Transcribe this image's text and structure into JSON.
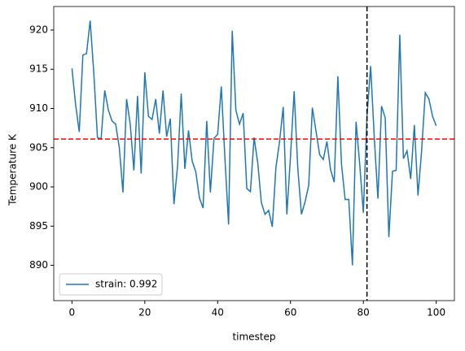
{
  "chart_data": {
    "type": "line",
    "xlabel": "timestep",
    "ylabel": "Temperature K",
    "x": [
      0,
      1,
      2,
      3,
      4,
      5,
      6,
      7,
      8,
      9,
      10,
      11,
      12,
      13,
      14,
      15,
      16,
      17,
      18,
      19,
      20,
      21,
      22,
      23,
      24,
      25,
      26,
      27,
      28,
      29,
      30,
      31,
      32,
      33,
      34,
      35,
      36,
      37,
      38,
      39,
      40,
      41,
      42,
      43,
      44,
      45,
      46,
      47,
      48,
      49,
      50,
      51,
      52,
      53,
      54,
      55,
      56,
      57,
      58,
      59,
      60,
      61,
      62,
      63,
      64,
      65,
      66,
      67,
      68,
      69,
      70,
      71,
      72,
      73,
      74,
      75,
      76,
      77,
      78,
      79,
      80,
      81,
      82,
      83,
      84,
      85,
      86,
      87,
      88,
      89,
      90,
      91,
      92,
      93,
      94,
      95,
      96,
      97,
      98,
      99,
      100
    ],
    "series": [
      {
        "name": "strain: 0.992",
        "color": "#1f77b4",
        "values": [
          915.1,
          910.5,
          907.0,
          916.8,
          917.0,
          921.2,
          914.5,
          906.3,
          906.1,
          912.3,
          909.8,
          908.4,
          908.0,
          905.0,
          899.3,
          911.2,
          908.0,
          902.1,
          911.6,
          901.7,
          914.6,
          909.0,
          908.6,
          911.2,
          906.8,
          912.3,
          906.4,
          908.7,
          897.8,
          902.7,
          911.9,
          902.3,
          907.2,
          903.3,
          901.9,
          898.6,
          897.3,
          908.4,
          899.3,
          906.2,
          906.7,
          912.8,
          903.6,
          895.2,
          919.9,
          909.8,
          908.0,
          909.4,
          899.8,
          899.4,
          906.3,
          903.1,
          898.0,
          896.5,
          897.0,
          894.9,
          902.5,
          905.8,
          910.2,
          896.5,
          903.9,
          912.2,
          902.4,
          896.5,
          898.1,
          900.2,
          910.1,
          907.1,
          904.1,
          903.5,
          905.8,
          902.2,
          900.6,
          914.1,
          902.9,
          898.4,
          898.4,
          890.0,
          908.3,
          902.9,
          896.7,
          909.0,
          915.4,
          906.3,
          898.5,
          910.3,
          908.8,
          893.6,
          902.0,
          902.1,
          919.4,
          903.6,
          904.6,
          901.0,
          907.9,
          898.9,
          904.6,
          912.0,
          911.2,
          909.0,
          907.8
        ]
      }
    ],
    "hline": {
      "value": 906.1,
      "color": "#ff0000"
    },
    "vline": {
      "value": 81,
      "color": "#000000"
    },
    "xlim": [
      -5,
      105
    ],
    "xticks": [
      0,
      20,
      40,
      60,
      80,
      100
    ],
    "ylim": [
      885.5,
      923
    ],
    "yticks": [
      890,
      895,
      900,
      905,
      910,
      915,
      920
    ],
    "legend": "lower left"
  }
}
